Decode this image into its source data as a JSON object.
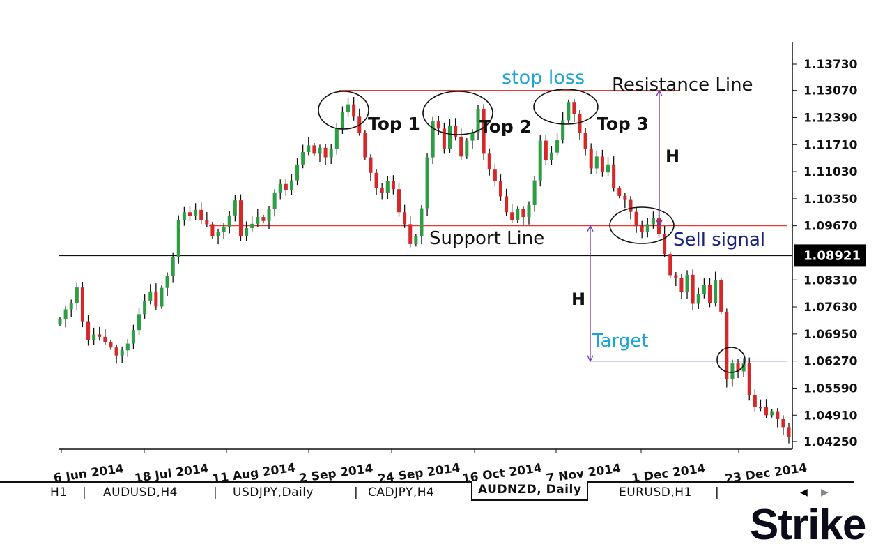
{
  "chart_data": {
    "type": "candlestick",
    "y_ticks": [
      "1.13730",
      "1.13070",
      "1.12390",
      "1.11710",
      "1.11030",
      "1.10350",
      "1.09670",
      "1.08921",
      "1.08310",
      "1.07630",
      "1.06950",
      "1.06270",
      "1.05590",
      "1.04910",
      "1.04250"
    ],
    "current_price": "1.08921",
    "x_ticks": [
      "6 Jun 2014",
      "18 Jul 2014",
      "11 Aug 2014",
      "2 Sep 2014",
      "24 Sep 2014",
      "16 Oct 2014",
      "7 Nov 2014",
      "1 Dec 2014",
      "23 Dec 2014"
    ],
    "ylim": [
      1.0415,
      1.1431
    ],
    "resistance_level": 1.1307,
    "support_level": 1.0967,
    "target_level": 1.0627,
    "annotations": {
      "stop_loss": "stop loss",
      "resistance": "Resistance Line",
      "support": "Support Line",
      "top1": "Top 1",
      "top2": "Top 2",
      "top3": "Top 3",
      "sell": "Sell signal",
      "target": "Target",
      "h": "H"
    },
    "colors": {
      "up": "#2e9e44",
      "down": "#d62828",
      "resistance": "#e53935",
      "support": "#e53935",
      "target": "#6a3ab2",
      "label_blue": "#1aa5d6",
      "sell_label": "#1a237e",
      "current_bg": "#000000"
    },
    "closes": [
      1.0732,
      1.0757,
      1.0772,
      1.0812,
      1.0727,
      1.0679,
      1.0694,
      1.0688,
      1.0675,
      1.0661,
      1.0641,
      1.0654,
      1.0671,
      1.0705,
      1.0745,
      1.0779,
      1.0802,
      1.0764,
      1.0811,
      1.0842,
      1.0889,
      1.0982,
      1.1001,
      1.0992,
      1.1007,
      1.0981,
      1.0971,
      1.0941,
      1.0952,
      1.0965,
      1.0993,
      1.1031,
      1.0941,
      1.0961,
      1.0972,
      1.0989,
      1.0979,
      1.1009,
      1.1049,
      1.1072,
      1.1057,
      1.1081,
      1.1121,
      1.1152,
      1.1169,
      1.1148,
      1.1163,
      1.1139,
      1.1161,
      1.1211,
      1.1252,
      1.1272,
      1.1241,
      1.1201,
      1.1139,
      1.11,
      1.1062,
      1.1049,
      1.1079,
      1.1059,
      1.1001,
      1.0971,
      1.0921,
      1.0941,
      1.1011,
      1.1139,
      1.1229,
      1.1211,
      1.1161,
      1.1219,
      1.1191,
      1.1141,
      1.1181,
      1.1202,
      1.1261,
      1.1148,
      1.1108,
      1.1079,
      1.1041,
      1.1001,
      1.0981,
      1.1009,
      1.0989,
      1.1019,
      1.1081,
      1.1181,
      1.1132,
      1.1151,
      1.1182,
      1.1232,
      1.1278,
      1.1248,
      1.1201,
      1.1161,
      1.1111,
      1.1141,
      1.1101,
      1.1121,
      1.1061,
      1.1042,
      1.1032,
      1.1002,
      1.0966,
      1.0951,
      1.0971,
      1.0986,
      1.0946,
      1.0896,
      1.0843,
      1.0836,
      1.0801,
      1.0844,
      1.0771,
      1.0796,
      1.0818,
      1.0772,
      1.0831,
      1.0751,
      1.0581,
      1.0621,
      1.0601,
      1.0621,
      1.0541,
      1.0512,
      1.0511,
      1.0491,
      1.0501,
      1.0481,
      1.0461,
      1.0437
    ],
    "tabs": [
      "H1",
      "AUDUSD,H4",
      "USDJPY,Daily",
      "CADJPY,H4",
      "AUDNZD, Daily",
      "EURUSD,H1"
    ],
    "active_tab": "AUDNZD, Daily"
  },
  "brand": {
    "logo_text": "Strike"
  }
}
